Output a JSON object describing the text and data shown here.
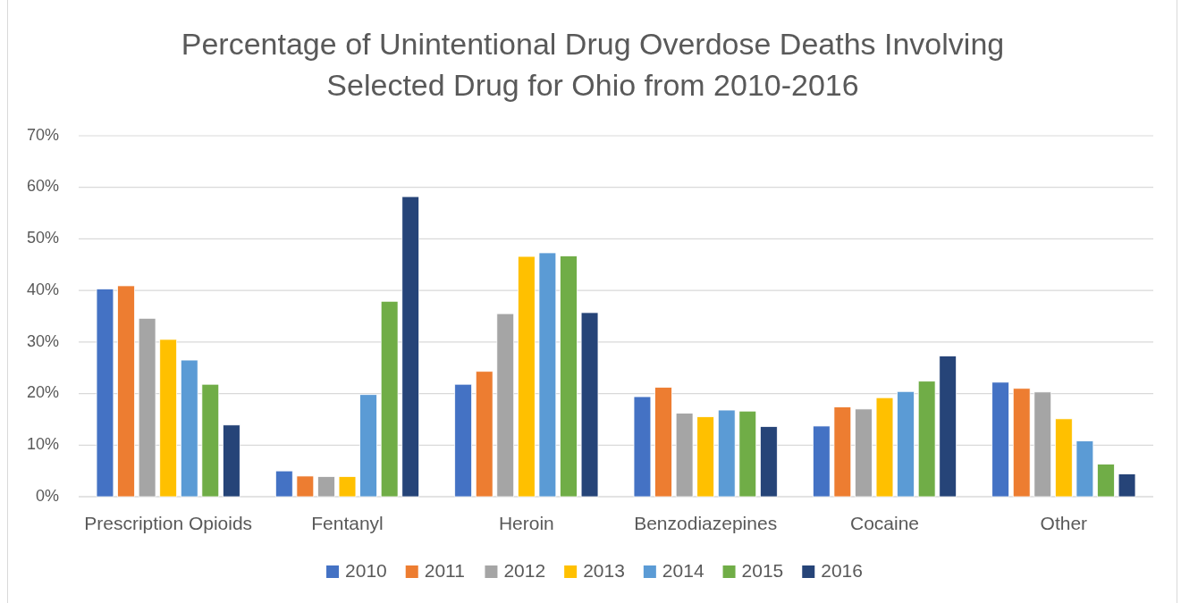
{
  "chart_data": {
    "type": "bar",
    "title": "Percentage of Unintentional Drug Overdose Deaths Involving Selected Drug for Ohio from 2010-2016",
    "categories": [
      "Prescription Opioids",
      "Fentanyl",
      "Heroin",
      "Benzodiazepines",
      "Cocaine",
      "Other"
    ],
    "series": [
      {
        "name": "2010",
        "color": "#4472c4",
        "values": [
          40.3,
          5.0,
          21.8,
          19.4,
          13.7,
          22.2
        ]
      },
      {
        "name": "2011",
        "color": "#ed7d31",
        "values": [
          40.9,
          4.0,
          24.3,
          21.2,
          17.4,
          21.0
        ]
      },
      {
        "name": "2012",
        "color": "#a5a5a5",
        "values": [
          34.6,
          3.9,
          35.5,
          16.2,
          17.0,
          20.3
        ]
      },
      {
        "name": "2013",
        "color": "#ffc000",
        "values": [
          30.5,
          3.9,
          46.6,
          15.5,
          19.2,
          15.1
        ]
      },
      {
        "name": "2014",
        "color": "#5b9bd5",
        "values": [
          26.5,
          19.8,
          47.3,
          16.8,
          20.4,
          10.8
        ]
      },
      {
        "name": "2015",
        "color": "#70ad47",
        "values": [
          21.8,
          37.9,
          46.7,
          16.6,
          22.4,
          6.3
        ]
      },
      {
        "name": "2016",
        "color": "#264478",
        "values": [
          13.9,
          58.2,
          35.7,
          13.6,
          27.3,
          4.4
        ]
      }
    ],
    "ylim": [
      0,
      70
    ],
    "yticks": [
      {
        "value": 0,
        "label": "0%"
      },
      {
        "value": 10,
        "label": "10%"
      },
      {
        "value": 20,
        "label": "20%"
      },
      {
        "value": 30,
        "label": "30%"
      },
      {
        "value": 40,
        "label": "40%"
      },
      {
        "value": 50,
        "label": "50%"
      },
      {
        "value": 60,
        "label": "60%"
      },
      {
        "value": 70,
        "label": "70%"
      }
    ],
    "grid": "y",
    "legend": "bottom"
  }
}
